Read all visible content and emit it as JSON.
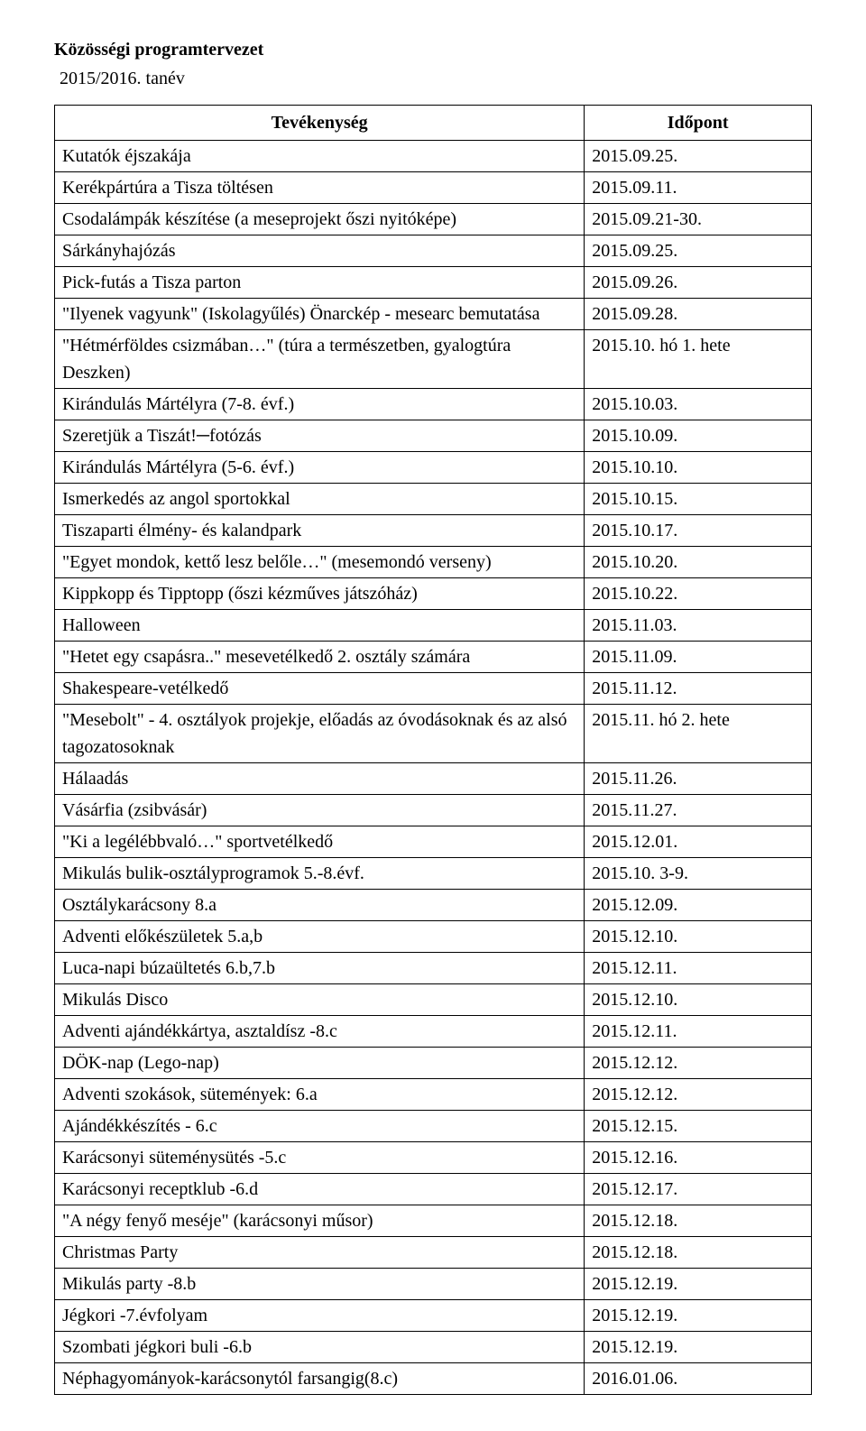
{
  "heading": {
    "title": "Közösségi programtervezet",
    "subtitle": "2015/2016. tanév"
  },
  "table": {
    "headers": {
      "activity": "Tevékenység",
      "date": "Időpont"
    },
    "rows": [
      {
        "activity": "Kutatók éjszakája",
        "date": "2015.09.25."
      },
      {
        "activity": "Kerékpártúra a Tisza töltésen",
        "date": "2015.09.11."
      },
      {
        "activity": "Csodalámpák készítése (a meseprojekt őszi nyitóképe)",
        "date": "2015.09.21-30."
      },
      {
        "activity": "Sárkányhajózás",
        "date": "2015.09.25."
      },
      {
        "activity": "Pick-futás a Tisza parton",
        "date": "2015.09.26."
      },
      {
        "activity": "\"Ilyenek vagyunk\" (Iskolagyűlés) Önarckép - mesearc bemutatása",
        "date": "2015.09.28."
      },
      {
        "activity": "\"Hétmérföldes csizmában…\" (túra a természetben, gyalogtúra Deszken)",
        "date": "2015.10. hó 1. hete"
      },
      {
        "activity": "Kirándulás Mártélyra (7-8. évf.)",
        "date": "2015.10.03."
      },
      {
        "activity": "Szeretjük a Tiszát!─fotózás",
        "date": "2015.10.09."
      },
      {
        "activity": "Kirándulás Mártélyra (5-6. évf.)",
        "date": "2015.10.10."
      },
      {
        "activity": "Ismerkedés az angol sportokkal",
        "date": "2015.10.15."
      },
      {
        "activity": "Tiszaparti élmény- és kalandpark",
        "date": "2015.10.17."
      },
      {
        "activity": "\"Egyet mondok, kettő lesz belőle…\" (mesemondó verseny)",
        "date": "2015.10.20."
      },
      {
        "activity": "Kippkopp és Tipptopp\n(őszi kézműves játszóház)",
        "date": "2015.10.22."
      },
      {
        "activity": "Halloween",
        "date": "2015.11.03."
      },
      {
        "activity": "\"Hetet egy csapásra..\" mesevetélkedő 2. osztály számára",
        "date": "2015.11.09."
      },
      {
        "activity": "Shakespeare-vetélkedő",
        "date": "2015.11.12."
      },
      {
        "activity": "\"Mesebolt\" - 4. osztályok projekje, előadás az óvodásoknak és az alsó tagozatosoknak",
        "date": "2015.11. hó 2. hete"
      },
      {
        "activity": "Hálaadás",
        "date": "2015.11.26."
      },
      {
        "activity": "Vásárfia (zsibvásár)",
        "date": "2015.11.27."
      },
      {
        "activity": "\"Ki a legélébbvaló…\" sportvetélkedő",
        "date": "2015.12.01."
      },
      {
        "activity": "Mikulás bulik-osztályprogramok 5.-8.évf.",
        "date": "2015.10. 3-9."
      },
      {
        "activity": "Osztálykarácsony 8.a",
        "date": "2015.12.09."
      },
      {
        "activity": "Adventi előkészületek 5.a,b",
        "date": "2015.12.10."
      },
      {
        "activity": "Luca-napi búzaültetés 6.b,7.b",
        "date": "2015.12.11."
      },
      {
        "activity": "Mikulás Disco",
        "date": "2015.12.10."
      },
      {
        "activity": "Adventi ajándékkártya, asztaldísz -8.c",
        "date": "2015.12.11."
      },
      {
        "activity": "DÖK-nap (Lego-nap)",
        "date": "2015.12.12."
      },
      {
        "activity": "Adventi szokások, sütemények: 6.a",
        "date": "2015.12.12."
      },
      {
        "activity": "Ajándékkészítés - 6.c",
        "date": "2015.12.15."
      },
      {
        "activity": "Karácsonyi süteménysütés -5.c",
        "date": "2015.12.16."
      },
      {
        "activity": "Karácsonyi receptklub -6.d",
        "date": "2015.12.17."
      },
      {
        "activity": "\"A négy fenyő meséje\" (karácsonyi műsor)",
        "date": "2015.12.18."
      },
      {
        "activity": "Christmas Party",
        "date": "2015.12.18."
      },
      {
        "activity": "Mikulás party -8.b",
        "date": "2015.12.19."
      },
      {
        "activity": "Jégkori -7.évfolyam",
        "date": "2015.12.19."
      },
      {
        "activity": "Szombati jégkori buli -6.b",
        "date": "2015.12.19."
      },
      {
        "activity": "Néphagyományok-karácsonytól farsangig(8.c)",
        "date": "2016.01.06."
      }
    ]
  }
}
